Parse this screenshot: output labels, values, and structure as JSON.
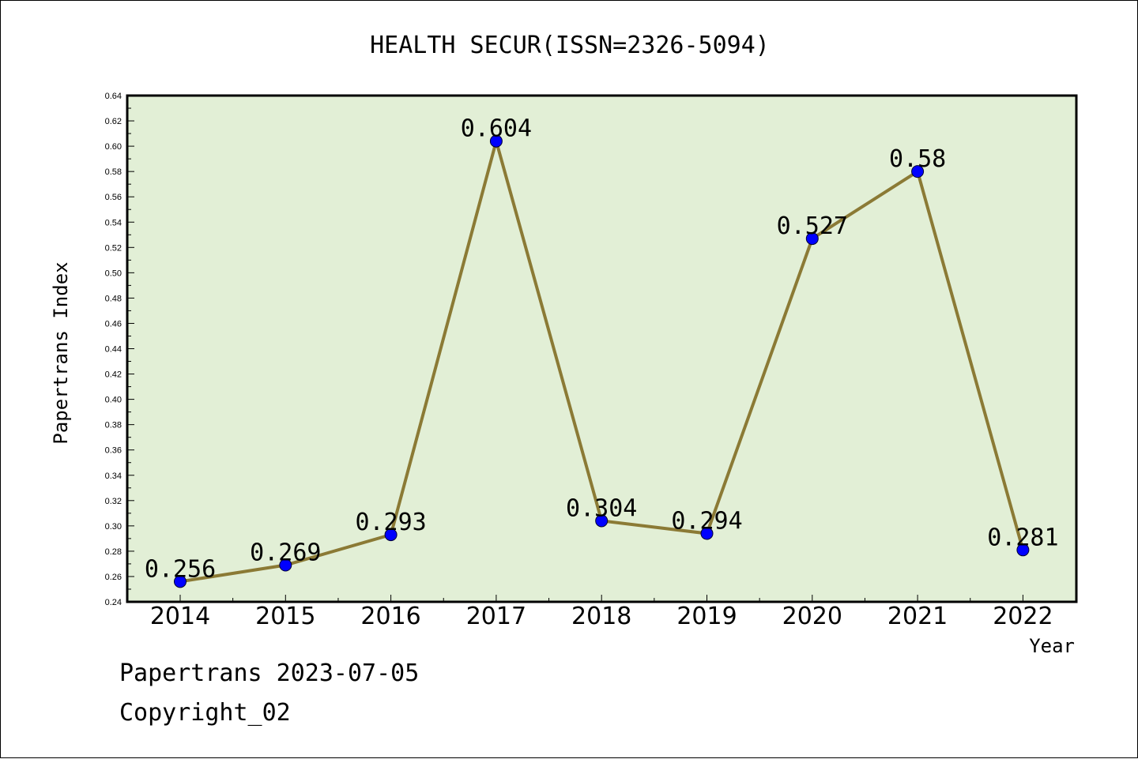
{
  "chart_data": {
    "type": "line",
    "title": "HEALTH SECUR(ISSN=2326-5094)",
    "xlabel": "Year",
    "ylabel": "Papertrans Index",
    "categories": [
      "2014",
      "2015",
      "2016",
      "2017",
      "2018",
      "2019",
      "2020",
      "2021",
      "2022"
    ],
    "values": [
      0.256,
      0.269,
      0.293,
      0.604,
      0.304,
      0.294,
      0.527,
      0.58,
      0.281
    ],
    "data_labels": [
      "0.256",
      "0.269",
      "0.293",
      "0.604",
      "0.304",
      "0.294",
      "0.527",
      "0.58",
      "0.281"
    ],
    "ylim": [
      0.24,
      0.64
    ],
    "yticks": [
      "0.24",
      "0.26",
      "0.28",
      "0.30",
      "0.32",
      "0.34",
      "0.36",
      "0.38",
      "0.40",
      "0.42",
      "0.44",
      "0.46",
      "0.48",
      "0.50",
      "0.52",
      "0.54",
      "0.56",
      "0.58",
      "0.60",
      "0.62",
      "0.64"
    ],
    "grid": false,
    "colors": {
      "plot_background": "#e2efd6",
      "line": "#8b7a35",
      "marker": "#0000ff"
    }
  },
  "footer": {
    "line1": "Papertrans 2023-07-05",
    "line2": "Copyright_02"
  }
}
